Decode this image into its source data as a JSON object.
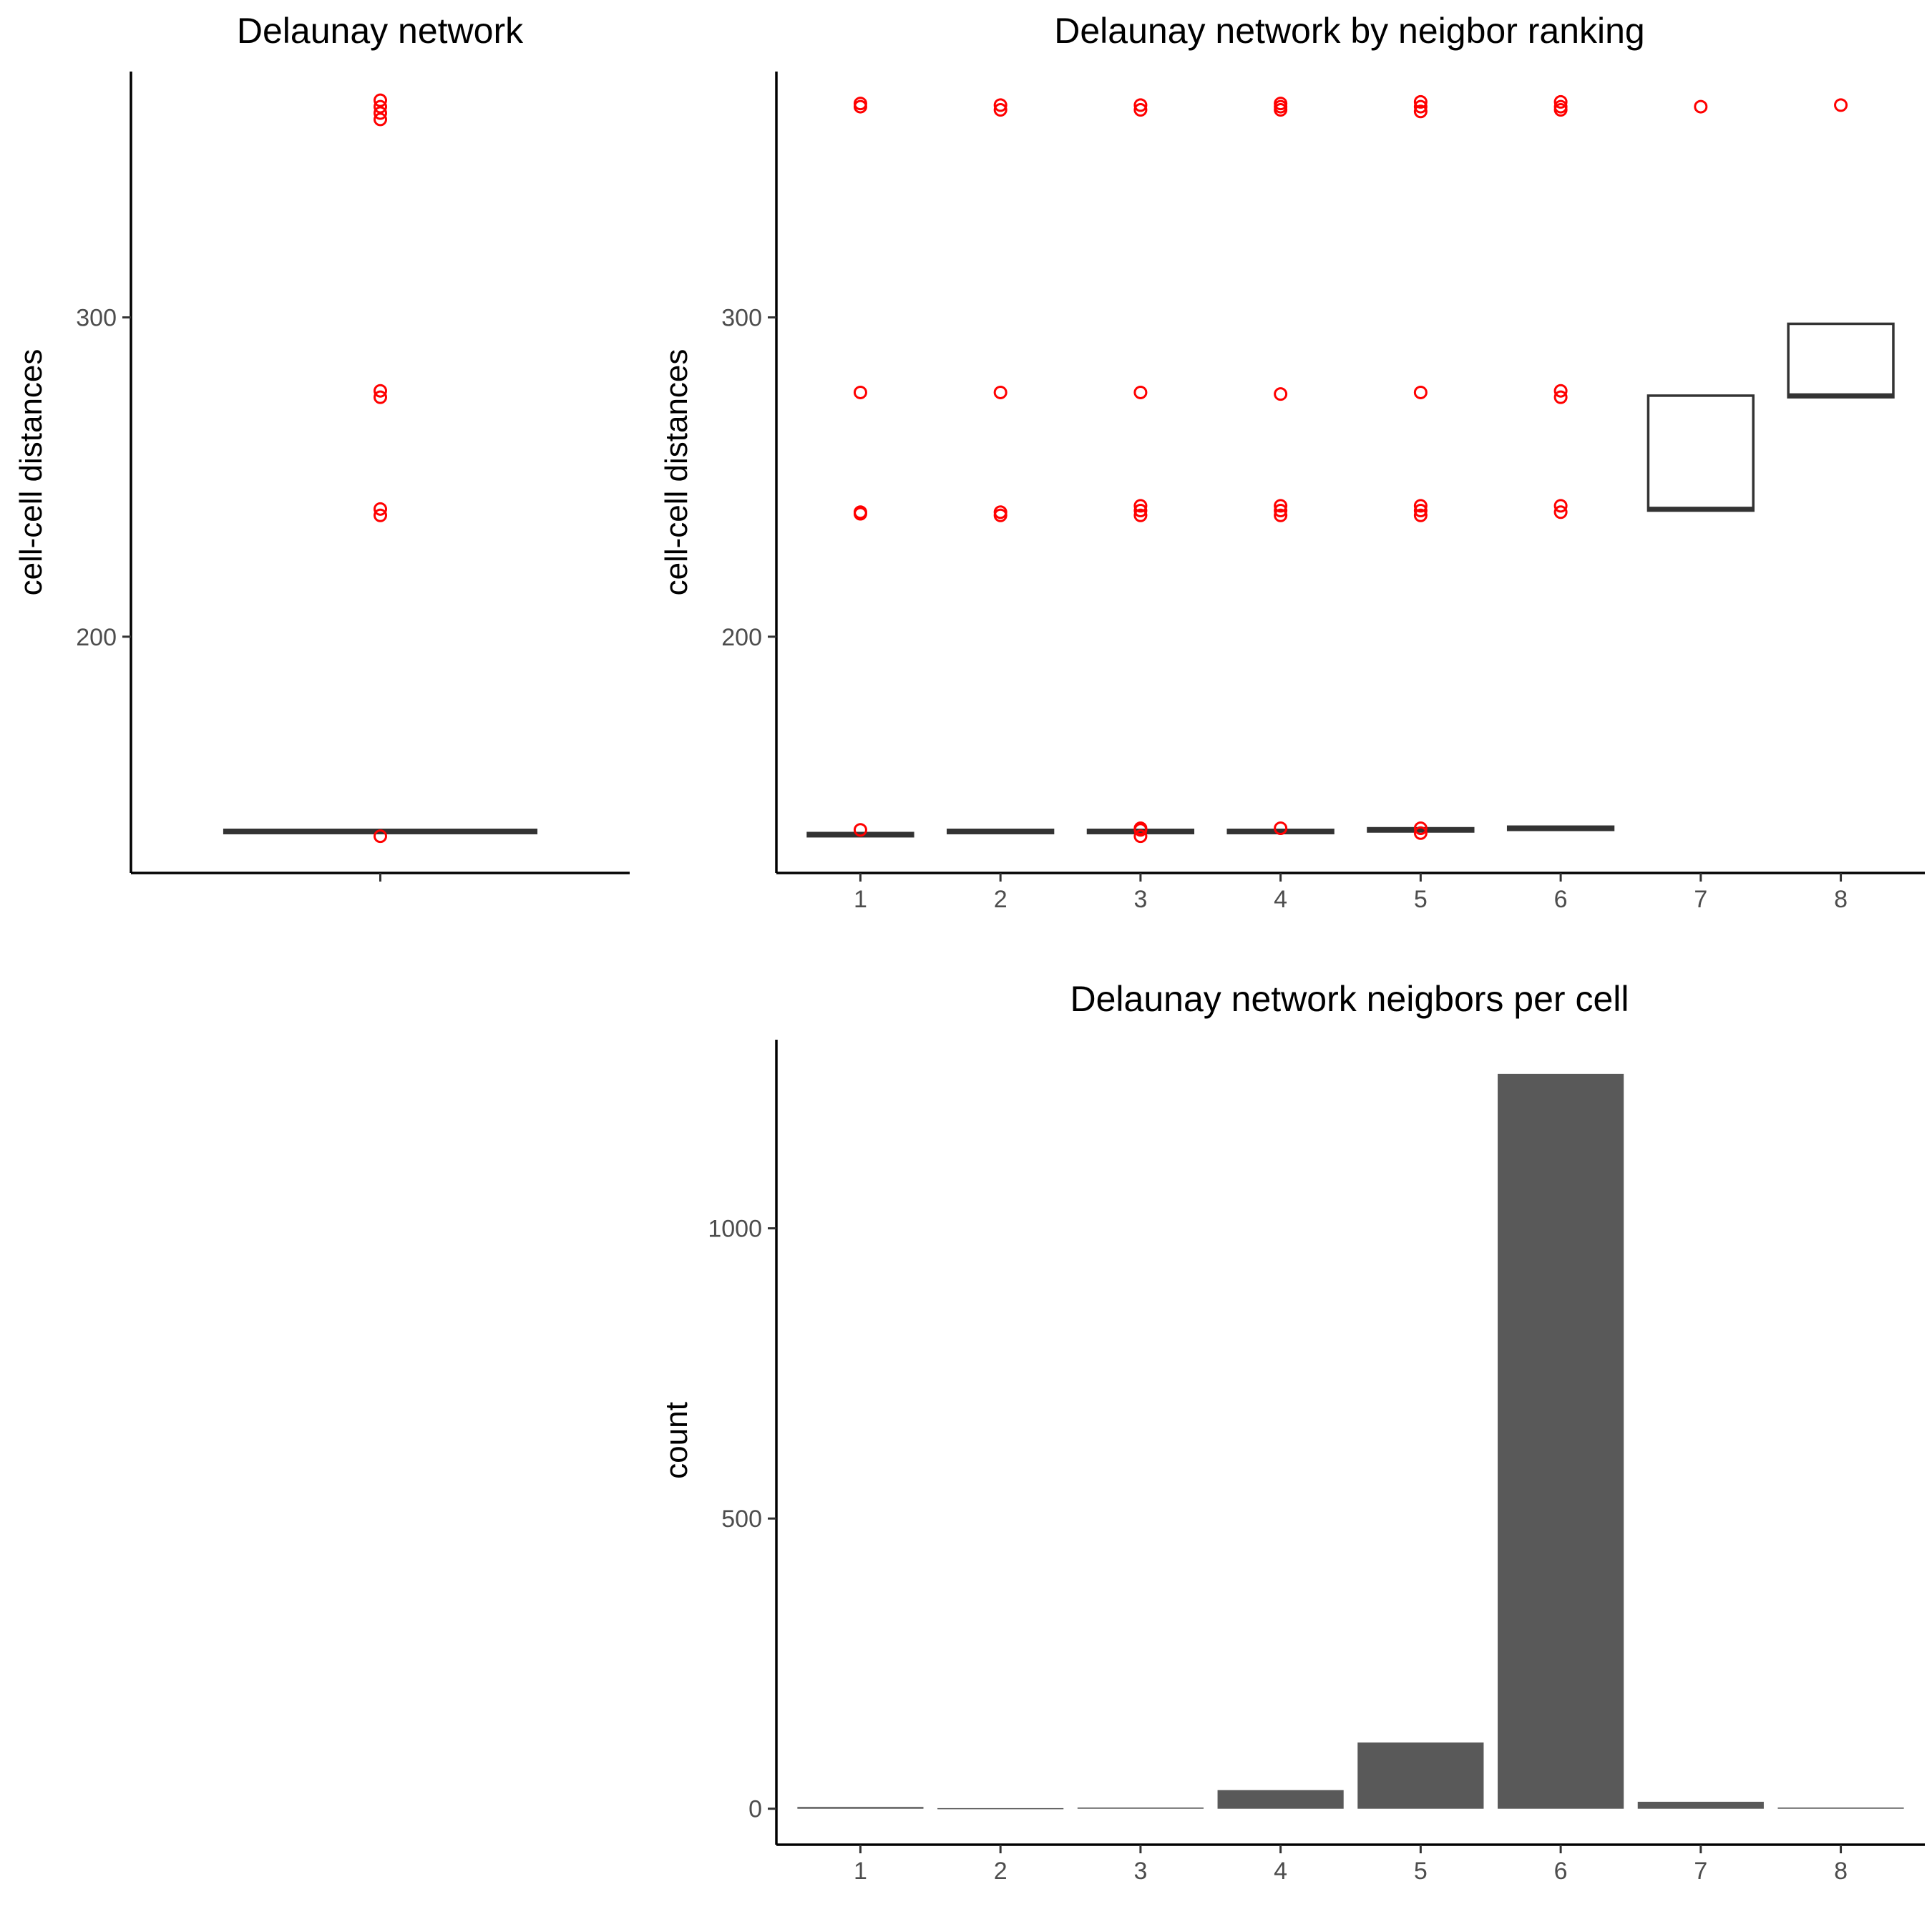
{
  "colors": {
    "outlier": "#ff0000",
    "box_line": "#333333",
    "bar_fill": "#595959",
    "axis": "#000000",
    "tick_text": "#4d4d4d"
  },
  "chart_data": [
    {
      "id": "delaunay-network",
      "type": "box",
      "title": "Delaunay network",
      "xlabel": "",
      "ylabel": "cell-cell distances",
      "ylim": [
        126,
        377
      ],
      "yticks": [
        200,
        300
      ],
      "categories": [
        ""
      ],
      "boxes": [
        {
          "category": "",
          "q1": 138.5,
          "median": 139,
          "q3": 139.5,
          "outliers": [
            137.5,
            238,
            240,
            275,
            277,
            362,
            364,
            366,
            368
          ]
        }
      ]
    },
    {
      "id": "delaunay-network-by-neighbor-ranking",
      "type": "box",
      "title": "Delaunay network by neigbor ranking",
      "xlabel": "",
      "ylabel": "cell-cell distances",
      "ylim": [
        126,
        377
      ],
      "yticks": [
        200,
        300
      ],
      "categories": [
        "1",
        "2",
        "3",
        "4",
        "5",
        "6",
        "7",
        "8"
      ],
      "boxes": [
        {
          "category": "1",
          "q1": 137.5,
          "median": 138,
          "q3": 138.5,
          "outliers": [
            139.5,
            238.5,
            239,
            276.5,
            366,
            367
          ]
        },
        {
          "category": "2",
          "q1": 138.5,
          "median": 139,
          "q3": 139.5,
          "outliers": [
            238,
            239,
            276.5,
            365,
            366.5
          ]
        },
        {
          "category": "3",
          "q1": 138.5,
          "median": 139,
          "q3": 139.5,
          "outliers": [
            137.5,
            139.5,
            140,
            238,
            239.5,
            241,
            276.5,
            365,
            366.5
          ]
        },
        {
          "category": "4",
          "q1": 138.5,
          "median": 139,
          "q3": 139.5,
          "outliers": [
            140,
            238,
            239.5,
            241,
            276,
            365,
            366,
            367
          ]
        },
        {
          "category": "5",
          "q1": 139,
          "median": 139.5,
          "q3": 140,
          "outliers": [
            138.5,
            140,
            238,
            239.5,
            241,
            276.5,
            364.5,
            366,
            367.5
          ]
        },
        {
          "category": "6",
          "q1": 139.5,
          "median": 140,
          "q3": 140.5,
          "outliers": [
            239,
            241,
            275,
            277,
            365,
            366,
            367.5
          ]
        },
        {
          "category": "7",
          "q1": 239.5,
          "median": 240,
          "q3": 275.5,
          "outliers": [
            366
          ]
        },
        {
          "category": "8",
          "q1": 275,
          "median": 275.5,
          "q3": 298,
          "outliers": [
            366.5
          ]
        }
      ]
    },
    {
      "id": "delaunay-network-neigbors-per-cell",
      "type": "bar",
      "title": "Delaunay network neigbors per cell",
      "xlabel": "",
      "ylabel": "count",
      "ylim": [
        -62,
        1325
      ],
      "yticks": [
        0,
        500,
        1000
      ],
      "categories": [
        "1",
        "2",
        "3",
        "4",
        "5",
        "6",
        "7",
        "8"
      ],
      "values": [
        3,
        1,
        2,
        32,
        114,
        1266,
        12,
        2
      ]
    }
  ]
}
